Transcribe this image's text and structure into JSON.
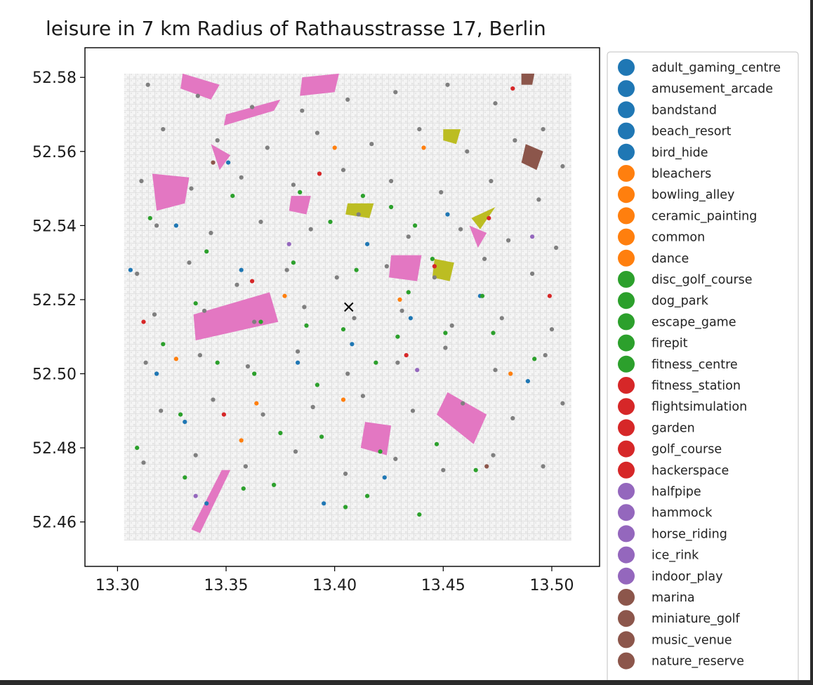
{
  "chart_data": {
    "type": "scatter",
    "title": "leisure in 7 km Radius of Rathausstrasse 17, Berlin",
    "xlabel": "",
    "ylabel": "",
    "xlim": [
      13.285,
      13.522
    ],
    "ylim": [
      52.448,
      52.588
    ],
    "xticks": [
      "13.30",
      "13.35",
      "13.40",
      "13.45",
      "13.50"
    ],
    "yticks": [
      "52.46",
      "52.48",
      "52.50",
      "52.52",
      "52.54",
      "52.56",
      "52.58"
    ],
    "xtick_values": [
      13.3,
      13.35,
      13.4,
      13.45,
      13.5
    ],
    "ytick_values": [
      52.46,
      52.48,
      52.5,
      52.52,
      52.54,
      52.56,
      52.58
    ],
    "grid": false,
    "legend_position": "right-outside",
    "center_marker": {
      "x": 13.4065,
      "y": 52.518,
      "symbol": "x"
    },
    "data_extent": {
      "x": [
        13.303,
        13.509
      ],
      "y": [
        52.455,
        52.581
      ]
    },
    "legend": [
      {
        "label": "adult_gaming_centre",
        "color": "#1f77b4"
      },
      {
        "label": "amusement_arcade",
        "color": "#1f77b4"
      },
      {
        "label": "bandstand",
        "color": "#1f77b4"
      },
      {
        "label": "beach_resort",
        "color": "#1f77b4"
      },
      {
        "label": "bird_hide",
        "color": "#1f77b4"
      },
      {
        "label": "bleachers",
        "color": "#ff7f0e"
      },
      {
        "label": "bowling_alley",
        "color": "#ff7f0e"
      },
      {
        "label": "ceramic_painting",
        "color": "#ff7f0e"
      },
      {
        "label": "common",
        "color": "#ff7f0e"
      },
      {
        "label": "dance",
        "color": "#ff7f0e"
      },
      {
        "label": "disc_golf_course",
        "color": "#2ca02c"
      },
      {
        "label": "dog_park",
        "color": "#2ca02c"
      },
      {
        "label": "escape_game",
        "color": "#2ca02c"
      },
      {
        "label": "firepit",
        "color": "#2ca02c"
      },
      {
        "label": "fitness_centre",
        "color": "#2ca02c"
      },
      {
        "label": "fitness_station",
        "color": "#d62728"
      },
      {
        "label": "flightsimulation",
        "color": "#d62728"
      },
      {
        "label": "garden",
        "color": "#d62728"
      },
      {
        "label": "golf_course",
        "color": "#d62728"
      },
      {
        "label": "hackerspace",
        "color": "#d62728"
      },
      {
        "label": "halfpipe",
        "color": "#9467bd"
      },
      {
        "label": "hammock",
        "color": "#9467bd"
      },
      {
        "label": "horse_riding",
        "color": "#9467bd"
      },
      {
        "label": "ice_rink",
        "color": "#9467bd"
      },
      {
        "label": "indoor_play",
        "color": "#9467bd"
      },
      {
        "label": "marina",
        "color": "#8c564b"
      },
      {
        "label": "miniature_golf",
        "color": "#8c564b"
      },
      {
        "label": "music_venue",
        "color": "#8c564b"
      },
      {
        "label": "nature_reserve",
        "color": "#8c564b"
      }
    ],
    "areas": [
      {
        "color": "#e377c2",
        "points": [
          [
            13.335,
            52.516
          ],
          [
            13.37,
            52.522
          ],
          [
            13.374,
            52.514
          ],
          [
            13.336,
            52.509
          ]
        ]
      },
      {
        "color": "#e377c2",
        "points": [
          [
            13.452,
            52.495
          ],
          [
            13.47,
            52.489
          ],
          [
            13.464,
            52.481
          ],
          [
            13.447,
            52.489
          ]
        ]
      },
      {
        "color": "#e377c2",
        "points": [
          [
            13.316,
            52.554
          ],
          [
            13.333,
            52.553
          ],
          [
            13.331,
            52.546
          ],
          [
            13.318,
            52.544
          ]
        ]
      },
      {
        "color": "#e377c2",
        "points": [
          [
            13.414,
            52.487
          ],
          [
            13.426,
            52.486
          ],
          [
            13.424,
            52.478
          ],
          [
            13.412,
            52.48
          ]
        ]
      },
      {
        "color": "#e377c2",
        "points": [
          [
            13.426,
            52.532
          ],
          [
            13.44,
            52.532
          ],
          [
            13.438,
            52.525
          ],
          [
            13.425,
            52.526
          ]
        ]
      },
      {
        "color": "#e377c2",
        "points": [
          [
            13.343,
            52.562
          ],
          [
            13.352,
            52.559
          ],
          [
            13.347,
            52.555
          ]
        ]
      },
      {
        "color": "#e377c2",
        "points": [
          [
            13.38,
            52.548
          ],
          [
            13.389,
            52.548
          ],
          [
            13.387,
            52.543
          ],
          [
            13.379,
            52.544
          ]
        ]
      },
      {
        "color": "#e377c2",
        "points": [
          [
            13.33,
            52.581
          ],
          [
            13.347,
            52.578
          ],
          [
            13.343,
            52.574
          ],
          [
            13.329,
            52.577
          ]
        ]
      },
      {
        "color": "#e377c2",
        "points": [
          [
            13.35,
            52.57
          ],
          [
            13.375,
            52.574
          ],
          [
            13.372,
            52.571
          ],
          [
            13.349,
            52.567
          ]
        ]
      },
      {
        "color": "#e377c2",
        "points": [
          [
            13.385,
            52.58
          ],
          [
            13.402,
            52.581
          ],
          [
            13.4,
            52.576
          ],
          [
            13.384,
            52.575
          ]
        ]
      },
      {
        "color": "#e377c2",
        "points": [
          [
            13.462,
            52.54
          ],
          [
            13.47,
            52.538
          ],
          [
            13.466,
            52.534
          ]
        ]
      },
      {
        "color": "#e377c2",
        "points": [
          [
            13.348,
            52.474
          ],
          [
            13.352,
            52.474
          ],
          [
            13.338,
            52.457
          ],
          [
            13.334,
            52.458
          ]
        ]
      },
      {
        "color": "#bcbd22",
        "points": [
          [
            13.463,
            52.542
          ],
          [
            13.474,
            52.545
          ],
          [
            13.467,
            52.539
          ]
        ]
      },
      {
        "color": "#bcbd22",
        "points": [
          [
            13.446,
            52.531
          ],
          [
            13.455,
            52.53
          ],
          [
            13.453,
            52.525
          ],
          [
            13.445,
            52.526
          ]
        ]
      },
      {
        "color": "#bcbd22",
        "points": [
          [
            13.406,
            52.546
          ],
          [
            13.418,
            52.546
          ],
          [
            13.416,
            52.542
          ],
          [
            13.405,
            52.543
          ]
        ]
      },
      {
        "color": "#bcbd22",
        "points": [
          [
            13.45,
            52.566
          ],
          [
            13.458,
            52.566
          ],
          [
            13.456,
            52.562
          ],
          [
            13.45,
            52.563
          ]
        ]
      },
      {
        "color": "#8c564b",
        "points": [
          [
            13.488,
            52.562
          ],
          [
            13.496,
            52.56
          ],
          [
            13.493,
            52.555
          ],
          [
            13.486,
            52.557
          ]
        ]
      },
      {
        "color": "#8c564b",
        "points": [
          [
            13.486,
            52.581
          ],
          [
            13.492,
            52.581
          ],
          [
            13.491,
            52.578
          ],
          [
            13.486,
            52.578
          ]
        ]
      }
    ],
    "series": [
      {
        "name": "adult_gaming_centre … bird_hide",
        "color": "#1f77b4",
        "x": [
          13.327,
          13.452,
          13.318,
          13.415,
          13.408,
          13.331,
          13.383,
          13.357,
          13.467,
          13.435,
          13.489,
          13.423,
          13.341,
          13.351,
          13.306,
          13.395
        ],
        "y": [
          52.54,
          52.543,
          52.5,
          52.535,
          52.508,
          52.487,
          52.503,
          52.528,
          52.521,
          52.515,
          52.498,
          52.472,
          52.465,
          52.557,
          52.528,
          52.465
        ]
      },
      {
        "name": "bleachers … dance",
        "color": "#ff7f0e",
        "x": [
          13.377,
          13.441,
          13.404,
          13.364,
          13.327,
          13.481,
          13.4,
          13.43,
          13.357
        ],
        "y": [
          52.521,
          52.561,
          52.493,
          52.492,
          52.504,
          52.5,
          52.561,
          52.52,
          52.482
        ]
      },
      {
        "name": "disc_golf_course … fitness_centre",
        "color": "#2ca02c",
        "x": [
          13.426,
          13.413,
          13.437,
          13.445,
          13.381,
          13.336,
          13.321,
          13.363,
          13.392,
          13.419,
          13.468,
          13.434,
          13.41,
          13.398,
          13.384,
          13.353,
          13.315,
          13.341,
          13.404,
          13.429,
          13.451,
          13.473,
          13.492,
          13.375,
          13.394,
          13.421,
          13.447,
          13.465,
          13.331,
          13.358,
          13.372,
          13.405,
          13.415,
          13.439,
          13.309,
          13.329,
          13.346,
          13.366,
          13.387
        ],
        "y": [
          52.545,
          52.548,
          52.54,
          52.531,
          52.53,
          52.519,
          52.508,
          52.5,
          52.497,
          52.503,
          52.521,
          52.522,
          52.528,
          52.541,
          52.549,
          52.548,
          52.542,
          52.533,
          52.512,
          52.51,
          52.511,
          52.511,
          52.504,
          52.484,
          52.483,
          52.479,
          52.481,
          52.474,
          52.472,
          52.469,
          52.47,
          52.464,
          52.467,
          52.462,
          52.48,
          52.489,
          52.503,
          52.514,
          52.513
        ]
      },
      {
        "name": "fitness_station … hackerspace",
        "color": "#d62728",
        "x": [
          13.482,
          13.312,
          13.446,
          13.362,
          13.433,
          13.393,
          13.471,
          13.349,
          13.499
        ],
        "y": [
          52.577,
          52.514,
          52.529,
          52.525,
          52.505,
          52.554,
          52.542,
          52.489,
          52.521
        ]
      },
      {
        "name": "halfpipe … indoor_play",
        "color": "#9467bd",
        "x": [
          13.379,
          13.438,
          13.336,
          13.491
        ],
        "y": [
          52.535,
          52.501,
          52.467,
          52.537
        ]
      },
      {
        "name": "marina … nature_reserve",
        "color": "#8c564b",
        "x": [
          13.47,
          13.344
        ],
        "y": [
          52.475,
          52.557
        ]
      },
      {
        "name": "other (grey)",
        "color": "#7f7f7f",
        "x": [
          13.314,
          13.337,
          13.362,
          13.385,
          13.406,
          13.428,
          13.452,
          13.474,
          13.496,
          13.321,
          13.346,
          13.369,
          13.392,
          13.417,
          13.439,
          13.461,
          13.483,
          13.505,
          13.311,
          13.334,
          13.357,
          13.381,
          13.404,
          13.426,
          13.449,
          13.472,
          13.494,
          13.318,
          13.343,
          13.366,
          13.389,
          13.411,
          13.434,
          13.458,
          13.48,
          13.502,
          13.309,
          13.333,
          13.355,
          13.378,
          13.401,
          13.424,
          13.446,
          13.469,
          13.491,
          13.317,
          13.34,
          13.363,
          13.386,
          13.409,
          13.431,
          13.454,
          13.477,
          13.5,
          13.313,
          13.338,
          13.36,
          13.383,
          13.406,
          13.429,
          13.451,
          13.474,
          13.497,
          13.32,
          13.344,
          13.367,
          13.39,
          13.413,
          13.436,
          13.459,
          13.482,
          13.505,
          13.312,
          13.336,
          13.359,
          13.382,
          13.405,
          13.428,
          13.45,
          13.473,
          13.496
        ],
        "y": [
          52.578,
          52.575,
          52.572,
          52.571,
          52.574,
          52.576,
          52.578,
          52.573,
          52.566,
          52.566,
          52.563,
          52.561,
          52.565,
          52.562,
          52.566,
          52.56,
          52.563,
          52.556,
          52.552,
          52.55,
          52.553,
          52.551,
          52.555,
          52.552,
          52.549,
          52.552,
          52.547,
          52.54,
          52.538,
          52.541,
          52.539,
          52.543,
          52.537,
          52.539,
          52.536,
          52.534,
          52.527,
          52.53,
          52.524,
          52.528,
          52.526,
          52.529,
          52.526,
          52.531,
          52.527,
          52.516,
          52.517,
          52.514,
          52.518,
          52.515,
          52.517,
          52.513,
          52.515,
          52.512,
          52.503,
          52.505,
          52.502,
          52.506,
          52.5,
          52.503,
          52.507,
          52.501,
          52.505,
          52.49,
          52.493,
          52.489,
          52.491,
          52.494,
          52.49,
          52.492,
          52.488,
          52.492,
          52.476,
          52.478,
          52.475,
          52.479,
          52.473,
          52.477,
          52.474,
          52.478,
          52.475
        ]
      }
    ]
  }
}
